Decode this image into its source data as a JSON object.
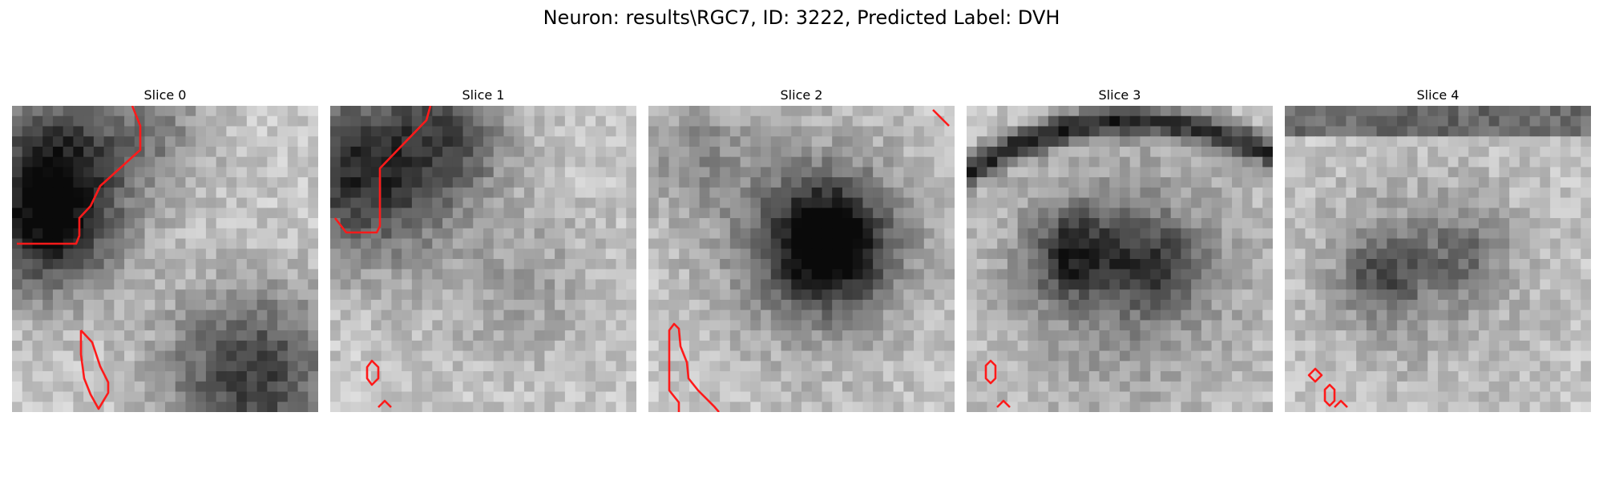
{
  "title": "Neuron: results\\RGC7, ID: 3222, Predicted Label: DVH",
  "contour_color": "#ff1a1a",
  "slices": [
    {
      "label": "Slice 0"
    },
    {
      "label": "Slice 1"
    },
    {
      "label": "Slice 2"
    },
    {
      "label": "Slice 3"
    },
    {
      "label": "Slice 4"
    }
  ]
}
